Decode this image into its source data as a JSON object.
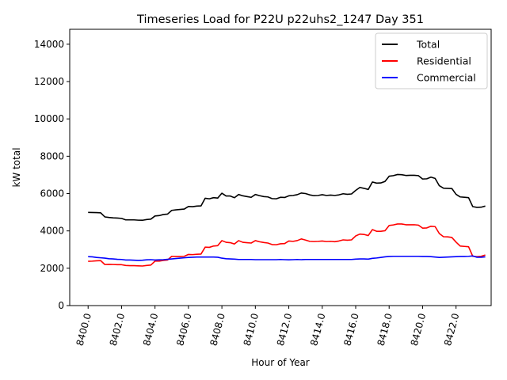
{
  "chart_data": {
    "type": "line",
    "title": "Timeseries Load for P22U p22uhs2_1247  Day 351",
    "xlabel": "Hour of Year",
    "ylabel": "kW total",
    "xlim": [
      8398.9,
      8424.1
    ],
    "ylim": [
      0,
      14800
    ],
    "xticks": [
      8400,
      8402,
      8404,
      8406,
      8408,
      8410,
      8412,
      8414,
      8416,
      8418,
      8420,
      8422
    ],
    "xtick_labels": [
      "8400.0",
      "8402.0",
      "8404.0",
      "8406.0",
      "8408.0",
      "8410.0",
      "8412.0",
      "8414.0",
      "8416.0",
      "8418.0",
      "8420.0",
      "8422.0"
    ],
    "yticks": [
      0,
      2000,
      4000,
      6000,
      8000,
      10000,
      12000,
      14000
    ],
    "ytick_labels": [
      "0",
      "2000",
      "4000",
      "6000",
      "8000",
      "10000",
      "12000",
      "14000"
    ],
    "legend_position": "top-right",
    "x_start": 8400,
    "x_step": 0.25,
    "series": [
      {
        "name": "Total",
        "color": "#000000",
        "values": [
          4990,
          4985,
          4980,
          4970,
          4750,
          4720,
          4700,
          4690,
          4670,
          4590,
          4590,
          4590,
          4575,
          4570,
          4610,
          4630,
          4800,
          4820,
          4880,
          4900,
          5100,
          5130,
          5150,
          5170,
          5310,
          5300,
          5330,
          5340,
          5750,
          5720,
          5780,
          5760,
          6020,
          5870,
          5870,
          5780,
          5950,
          5880,
          5840,
          5800,
          5950,
          5890,
          5840,
          5820,
          5730,
          5720,
          5800,
          5790,
          5880,
          5900,
          5940,
          6030,
          6000,
          5930,
          5890,
          5900,
          5940,
          5900,
          5920,
          5900,
          5930,
          5990,
          5960,
          5980,
          6170,
          6330,
          6280,
          6220,
          6620,
          6560,
          6570,
          6650,
          6930,
          6960,
          7020,
          7010,
          6970,
          6980,
          6980,
          6960,
          6780,
          6790,
          6880,
          6810,
          6420,
          6290,
          6280,
          6270,
          5960,
          5820,
          5800,
          5780,
          5300,
          5260,
          5270,
          5330
        ]
      },
      {
        "name": "Residential",
        "color": "#ff0000",
        "values": [
          2370,
          2380,
          2400,
          2410,
          2200,
          2210,
          2200,
          2190,
          2190,
          2150,
          2140,
          2140,
          2130,
          2120,
          2150,
          2170,
          2380,
          2380,
          2420,
          2440,
          2640,
          2630,
          2630,
          2640,
          2740,
          2730,
          2750,
          2760,
          3130,
          3120,
          3190,
          3210,
          3480,
          3390,
          3370,
          3300,
          3480,
          3390,
          3370,
          3350,
          3480,
          3420,
          3380,
          3350,
          3270,
          3260,
          3310,
          3320,
          3460,
          3440,
          3480,
          3570,
          3510,
          3440,
          3430,
          3440,
          3460,
          3430,
          3440,
          3420,
          3460,
          3520,
          3500,
          3520,
          3730,
          3830,
          3810,
          3750,
          4070,
          3980,
          3980,
          4010,
          4290,
          4320,
          4370,
          4370,
          4330,
          4330,
          4330,
          4310,
          4150,
          4160,
          4250,
          4230,
          3860,
          3690,
          3680,
          3650,
          3400,
          3190,
          3170,
          3150,
          2640,
          2620,
          2640,
          2710
        ]
      },
      {
        "name": "Commercial",
        "color": "#0000ff",
        "values": [
          2620,
          2610,
          2580,
          2560,
          2540,
          2510,
          2500,
          2480,
          2470,
          2440,
          2440,
          2430,
          2420,
          2430,
          2450,
          2460,
          2440,
          2450,
          2460,
          2480,
          2500,
          2520,
          2540,
          2560,
          2580,
          2590,
          2600,
          2600,
          2600,
          2600,
          2600,
          2590,
          2540,
          2510,
          2500,
          2490,
          2470,
          2470,
          2470,
          2470,
          2460,
          2460,
          2460,
          2460,
          2460,
          2460,
          2470,
          2460,
          2450,
          2460,
          2470,
          2460,
          2470,
          2470,
          2470,
          2470,
          2470,
          2470,
          2470,
          2470,
          2470,
          2470,
          2470,
          2470,
          2490,
          2500,
          2500,
          2490,
          2530,
          2550,
          2580,
          2610,
          2630,
          2640,
          2640,
          2640,
          2640,
          2640,
          2640,
          2640,
          2630,
          2630,
          2620,
          2600,
          2580,
          2590,
          2600,
          2610,
          2620,
          2630,
          2630,
          2640,
          2660,
          2590,
          2590,
          2610
        ]
      }
    ]
  }
}
